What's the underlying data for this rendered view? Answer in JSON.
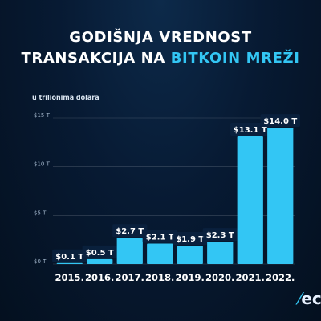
{
  "title_line1": "GODIŠNJA VREDNOST",
  "title_line2_prefix": "TRANSAKCIJA NA ",
  "title_line2_accent": "BITKOIN MREŽI",
  "unit_label": "u trilionima dolara",
  "logo_text": "ec",
  "colors": {
    "bar": "#33c6f4",
    "accent": "#33c6f4",
    "background": "#071a33"
  },
  "chart_data": {
    "type": "bar",
    "title": "GODIŠNJA VREDNOST TRANSAKCIJA NA BITKOIN MREŽI",
    "subtitle": "u trilionima dolara",
    "categories": [
      "2015.",
      "2016.",
      "2017.",
      "2018.",
      "2019.",
      "2020.",
      "2021.",
      "2022."
    ],
    "values": [
      0.1,
      0.5,
      2.7,
      2.1,
      1.9,
      2.3,
      13.1,
      14.0
    ],
    "data_labels": [
      "$0.1 T",
      "$0.5 T",
      "$2.7 T",
      "$2.1 T",
      "$1.9 T",
      "$2.3 T",
      "$13.1 T",
      "$14.0 T"
    ],
    "y_ticks": [
      0,
      5,
      10,
      15
    ],
    "y_tick_labels": [
      "$0 T",
      "$5 T",
      "$10 T",
      "$15 T"
    ],
    "ylim": [
      0,
      15
    ],
    "grid": true,
    "xlabel": "",
    "ylabel": ""
  }
}
